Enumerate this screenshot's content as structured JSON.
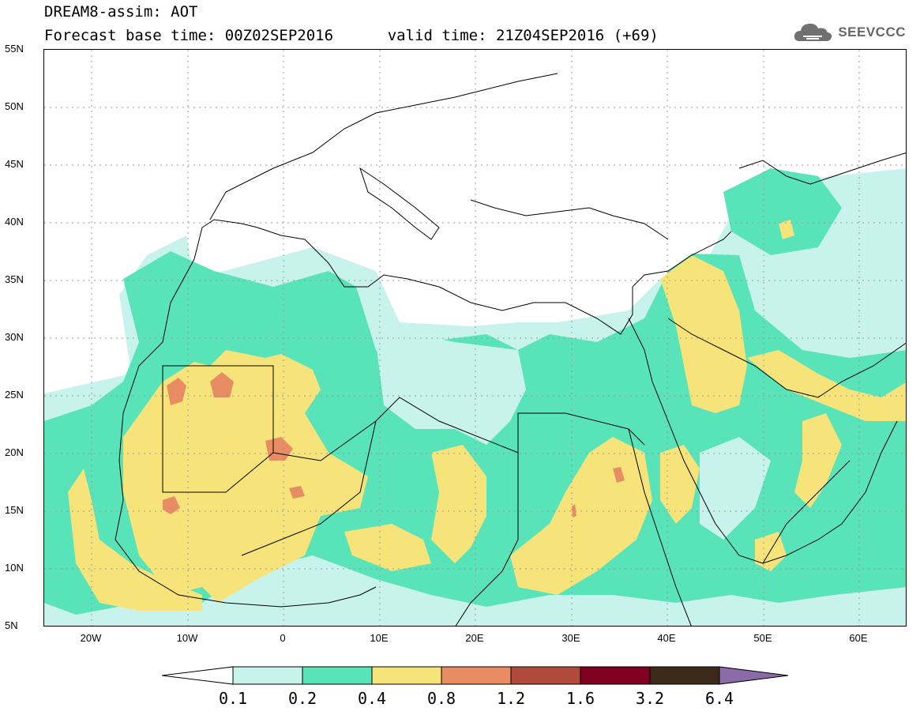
{
  "title": {
    "line1": "DREAM8-assim: AOT",
    "line2_base": "Forecast base time: 00Z02SEP2016",
    "line2_valid": "valid time: 21Z04SEP2016 (+69)"
  },
  "brand": {
    "name": "SEEVCCC",
    "icon": "cloud-icon"
  },
  "map": {
    "lon_range": [
      -25,
      65
    ],
    "lat_range": [
      5,
      55
    ],
    "y_ticks": [
      "55N",
      "50N",
      "45N",
      "40N",
      "35N",
      "30N",
      "25N",
      "20N",
      "15N",
      "10N",
      "5N"
    ],
    "x_ticks": [
      "20W",
      "10W",
      "0",
      "10E",
      "20E",
      "30E",
      "40E",
      "50E",
      "60E"
    ],
    "grid": true
  },
  "legend": {
    "thresholds": [
      "0.1",
      "0.2",
      "0.4",
      "0.8",
      "1.2",
      "1.6",
      "3.2",
      "6.4"
    ],
    "colors": [
      "#ffffff",
      "#c8f2ec",
      "#59e3b8",
      "#f6e37a",
      "#e88c64",
      "#b04a3a",
      "#800020",
      "#3b2a17",
      "#8b6aa8"
    ]
  }
}
